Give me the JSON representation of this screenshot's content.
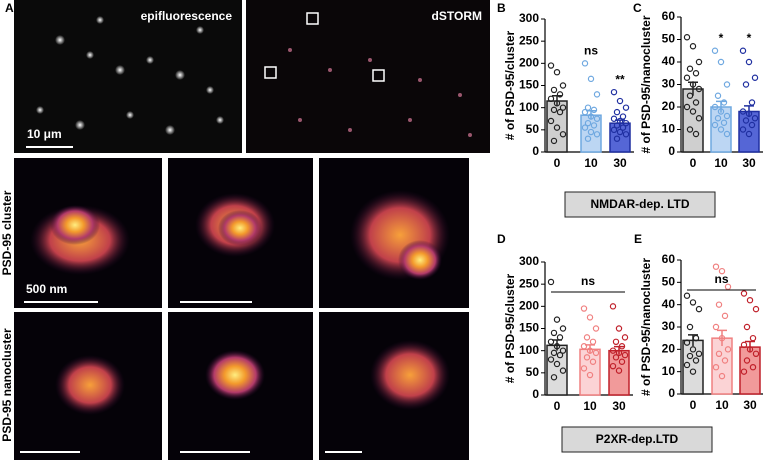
{
  "figure": {
    "panel": "A",
    "image_labels": {
      "epi": "epifluorescence",
      "storm": "dSTORM",
      "scale_top": "10 μm",
      "scale_mid": "500 nm",
      "row_cluster": "PSD-95 cluster",
      "row_nano": "PSD-95 nanocluster"
    },
    "groups": [
      "NMDAR-dep. LTD",
      "P2XR-dep.LTD"
    ]
  },
  "chart_data": [
    {
      "type": "bar",
      "panel": "B",
      "ylabel": "# of PSD-95/cluster",
      "categories": [
        "0",
        "10",
        "30"
      ],
      "values": [
        115,
        83,
        65
      ],
      "errors": [
        12,
        10,
        7
      ],
      "colors": [
        "#cfcfcf",
        "#bcd6f3",
        "#5566d6"
      ],
      "edge_colors": [
        "#222222",
        "#6fa8e0",
        "#1f2fa0"
      ],
      "points": [
        [
          195,
          180,
          150,
          140,
          130,
          120,
          110,
          100,
          95,
          90,
          70,
          55,
          40,
          25
        ],
        [
          200,
          165,
          130,
          100,
          95,
          90,
          80,
          75,
          65,
          60,
          55,
          45,
          40,
          30
        ],
        [
          135,
          115,
          100,
          90,
          80,
          75,
          70,
          65,
          60,
          55,
          50,
          45,
          40,
          30
        ]
      ],
      "annotations": [
        null,
        "ns",
        "**"
      ],
      "ylim": [
        0,
        300
      ],
      "yticks": [
        0,
        50,
        100,
        150,
        200,
        250,
        300
      ]
    },
    {
      "type": "bar",
      "panel": "C",
      "ylabel": "# of PSD-95/nanocluster",
      "categories": [
        "0",
        "10",
        "30"
      ],
      "values": [
        28,
        20,
        18
      ],
      "errors": [
        3,
        2.5,
        2.5
      ],
      "colors": [
        "#cfcfcf",
        "#bcd6f3",
        "#5566d6"
      ],
      "edge_colors": [
        "#222222",
        "#6fa8e0",
        "#1f2fa0"
      ],
      "points": [
        [
          51,
          47,
          40,
          37,
          35,
          33,
          30,
          28,
          25,
          22,
          20,
          18,
          15,
          10,
          8
        ],
        [
          45,
          40,
          30,
          25,
          22,
          20,
          18,
          16,
          15,
          13,
          12,
          10,
          8
        ],
        [
          45,
          40,
          33,
          30,
          22,
          18,
          17,
          15,
          14,
          12,
          10,
          8
        ]
      ],
      "annotations": [
        null,
        "*",
        "*"
      ],
      "ylim": [
        0,
        60
      ],
      "yticks": [
        0,
        10,
        20,
        30,
        40,
        50,
        60
      ]
    },
    {
      "type": "bar",
      "panel": "D",
      "ylabel": "# of PSD-95/cluster",
      "categories": [
        "0",
        "10",
        "30"
      ],
      "values": [
        112,
        103,
        100
      ],
      "errors": [
        12,
        10,
        9
      ],
      "colors": [
        "#dcdcdc",
        "#fbd3d5",
        "#f19a9a"
      ],
      "edge_colors": [
        "#222222",
        "#f08080",
        "#c0202a"
      ],
      "points": [
        [
          255,
          170,
          150,
          140,
          130,
          120,
          110,
          100,
          95,
          90,
          80,
          70,
          55,
          40
        ],
        [
          195,
          175,
          150,
          130,
          120,
          110,
          100,
          95,
          85,
          75,
          60,
          45
        ],
        [
          200,
          150,
          130,
          120,
          110,
          100,
          95,
          90,
          85,
          75,
          65,
          55
        ]
      ],
      "annotation": "ns",
      "ylim": [
        0,
        300
      ],
      "yticks": [
        0,
        50,
        100,
        150,
        200,
        250,
        300
      ]
    },
    {
      "type": "bar",
      "panel": "E",
      "ylabel": "# of PSD-95/nanocluster",
      "categories": [
        "0",
        "10",
        "30"
      ],
      "values": [
        24,
        25,
        21
      ],
      "errors": [
        2.5,
        3.5,
        2.5
      ],
      "colors": [
        "#dcdcdc",
        "#fbd3d5",
        "#f19a9a"
      ],
      "edge_colors": [
        "#222222",
        "#f08080",
        "#c0202a"
      ],
      "points": [
        [
          44,
          41,
          38,
          30,
          25,
          23,
          20,
          18,
          17,
          15,
          13,
          10
        ],
        [
          57,
          55,
          48,
          40,
          35,
          30,
          25,
          20,
          18,
          15,
          12,
          8
        ],
        [
          45,
          42,
          38,
          30,
          25,
          22,
          20,
          18,
          15,
          12,
          10
        ]
      ],
      "annotation": "ns",
      "ylim": [
        0,
        60
      ],
      "yticks": [
        0,
        10,
        20,
        30,
        40,
        50,
        60
      ]
    }
  ]
}
